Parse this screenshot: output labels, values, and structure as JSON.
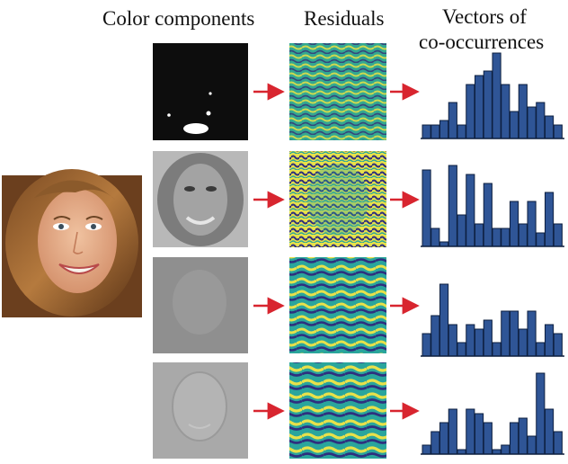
{
  "headers": {
    "color_components": "Color components",
    "residuals": "Residuals",
    "vectors_line1": "Vectors of",
    "vectors_line2": "co-occurrences"
  },
  "colors": {
    "arrow": "#d8252f",
    "bar_fill": "#2f5596",
    "bar_stroke": "#0d1f3f",
    "residual_teal": "#2aa59c",
    "residual_yellow": "#e8e14a",
    "residual_navy": "#2e2f7f",
    "residual_green": "#5fb86a"
  },
  "histograms": [
    {
      "values": [
        3,
        3,
        4,
        8,
        3,
        12,
        14,
        15,
        19,
        12,
        6,
        12,
        7,
        8,
        5,
        3
      ]
    },
    {
      "values": [
        17,
        4,
        1,
        18,
        7,
        16,
        5,
        14,
        4,
        4,
        10,
        5,
        10,
        3,
        12,
        5
      ]
    },
    {
      "values": [
        5,
        9,
        16,
        7,
        3,
        7,
        6,
        8,
        3,
        10,
        10,
        6,
        10,
        3,
        7,
        5
      ]
    },
    {
      "values": [
        2,
        5,
        7,
        10,
        1,
        10,
        9,
        7,
        1,
        2,
        7,
        8,
        4,
        18,
        10,
        5
      ]
    }
  ],
  "chart_data": [
    {
      "type": "bar",
      "values": [
        3,
        3,
        4,
        8,
        3,
        12,
        14,
        15,
        19,
        12,
        6,
        12,
        7,
        8,
        5,
        3
      ]
    },
    {
      "type": "bar",
      "values": [
        17,
        4,
        1,
        18,
        7,
        16,
        5,
        14,
        4,
        4,
        10,
        5,
        10,
        3,
        12,
        5
      ]
    },
    {
      "type": "bar",
      "values": [
        5,
        9,
        16,
        7,
        3,
        7,
        6,
        8,
        3,
        10,
        10,
        6,
        10,
        3,
        7,
        5
      ]
    },
    {
      "type": "bar",
      "values": [
        2,
        5,
        7,
        10,
        1,
        10,
        9,
        7,
        1,
        2,
        7,
        8,
        4,
        18,
        10,
        5
      ]
    }
  ]
}
